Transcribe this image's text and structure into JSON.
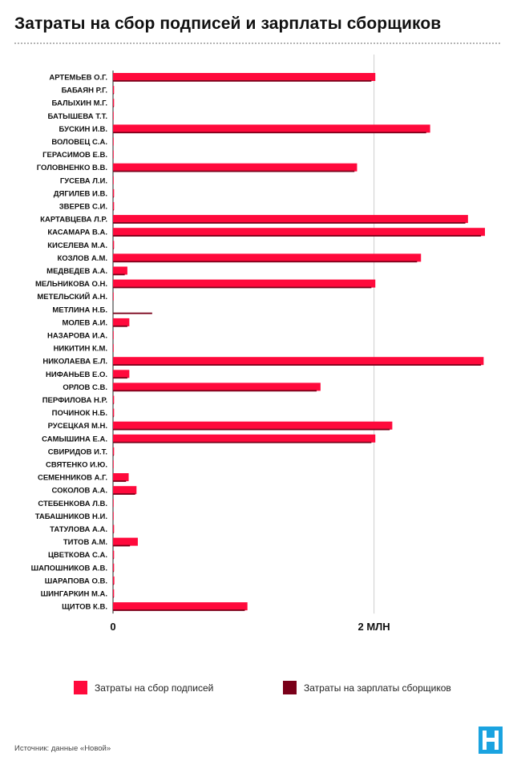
{
  "title": "Затраты на сбор подписей и зарплаты сборщиков",
  "source": "Источник: данные «Новой»",
  "logo": {
    "icon": "novaya-gazeta-logo-icon",
    "color": "#1aa3e0"
  },
  "colors": {
    "collection": "#ff0a3c",
    "salaries": "#7a0019",
    "axis": "#222222",
    "grid": "#cccccc"
  },
  "chart_data": {
    "type": "bar",
    "orientation": "horizontal",
    "grid": true,
    "legend_position": "bottom",
    "xlim": [
      0,
      2850000
    ],
    "x_ticks": [
      {
        "value": 0,
        "label": "0"
      },
      {
        "value": 2000000,
        "label": "2 МЛН"
      }
    ],
    "categories": [
      "АРТЕМЬЕВ О.Г.",
      "БАБАЯН Р.Г.",
      "БАЛЫХИН М.Г.",
      "БАТЫШЕВА Т.Т.",
      "БУСКИН И.В.",
      "ВОЛОВЕЦ С.А.",
      "ГЕРАСИМОВ Е.В.",
      "ГОЛОВНЕНКО В.В.",
      "ГУСЕВА Л.И.",
      "ДЯГИЛЕВ И.В.",
      "ЗВЕРЕВ С.И.",
      "КАРТАВЦЕВА Л.Р.",
      "КАСАМАРА В.А.",
      "КИСЕЛЕВА М.А.",
      "КОЗЛОВ А.М.",
      "МЕДВЕДЕВ А.А.",
      "МЕЛЬНИКОВА О.Н.",
      "МЕТЕЛЬСКИЙ А.Н.",
      "МЕТЛИНА Н.Б.",
      "МОЛЕВ А.И.",
      "НАЗАРОВА И.А.",
      "НИКИТИН К.М.",
      "НИКОЛАЕВА Е.Л.",
      "НИФАНЬЕВ Е.О.",
      "ОРЛОВ С.В.",
      "ПЕРФИЛОВА Н.Р.",
      "ПОЧИНОК Н.Б.",
      "РУСЕЦКАЯ М.Н.",
      "САМЫШИНА Е.А.",
      "СВИРИДОВ И.Т.",
      "СВЯТЕНКО И.Ю.",
      "СЕМЕННИКОВ А.Г.",
      "СОКОЛОВ А.А.",
      "СТЕБЕНКОВА Л.В.",
      "ТАБАШНИКОВ Н.И.",
      "ТАТУЛОВА А.А.",
      "ТИТОВ А.М.",
      "ЦВЕТКОВА С.А.",
      "ШАПОШНИКОВ А.В.",
      "ШАРАПОВА О.В.",
      "ШИНГАРКИН М.А.",
      "ЩИТОВ К.В."
    ],
    "series": [
      {
        "name": "Затраты на сбор подписей",
        "color": "#ff0a3c",
        "values": [
          2010000,
          8000,
          8000,
          5000,
          2430000,
          5000,
          5000,
          1870000,
          5000,
          8000,
          8000,
          2720000,
          2850000,
          8000,
          2360000,
          110000,
          2010000,
          5000,
          0,
          125000,
          5000,
          5000,
          2840000,
          125000,
          1590000,
          8000,
          8000,
          2140000,
          2010000,
          8000,
          3000,
          120000,
          180000,
          3000,
          5000,
          8000,
          190000,
          8000,
          8000,
          10000,
          8000,
          1030000
        ]
      },
      {
        "name": "Затраты на зарплаты сборщиков",
        "color": "#7a0019",
        "values": [
          1980000,
          4000,
          4000,
          0,
          2400000,
          0,
          0,
          1850000,
          0,
          4000,
          4000,
          2700000,
          2820000,
          4000,
          2330000,
          90000,
          1980000,
          0,
          300000,
          110000,
          0,
          0,
          2820000,
          110000,
          1560000,
          4000,
          4000,
          2120000,
          1980000,
          4000,
          0,
          100000,
          170000,
          0,
          0,
          4000,
          130000,
          4000,
          4000,
          4000,
          4000,
          1010000
        ]
      }
    ]
  }
}
